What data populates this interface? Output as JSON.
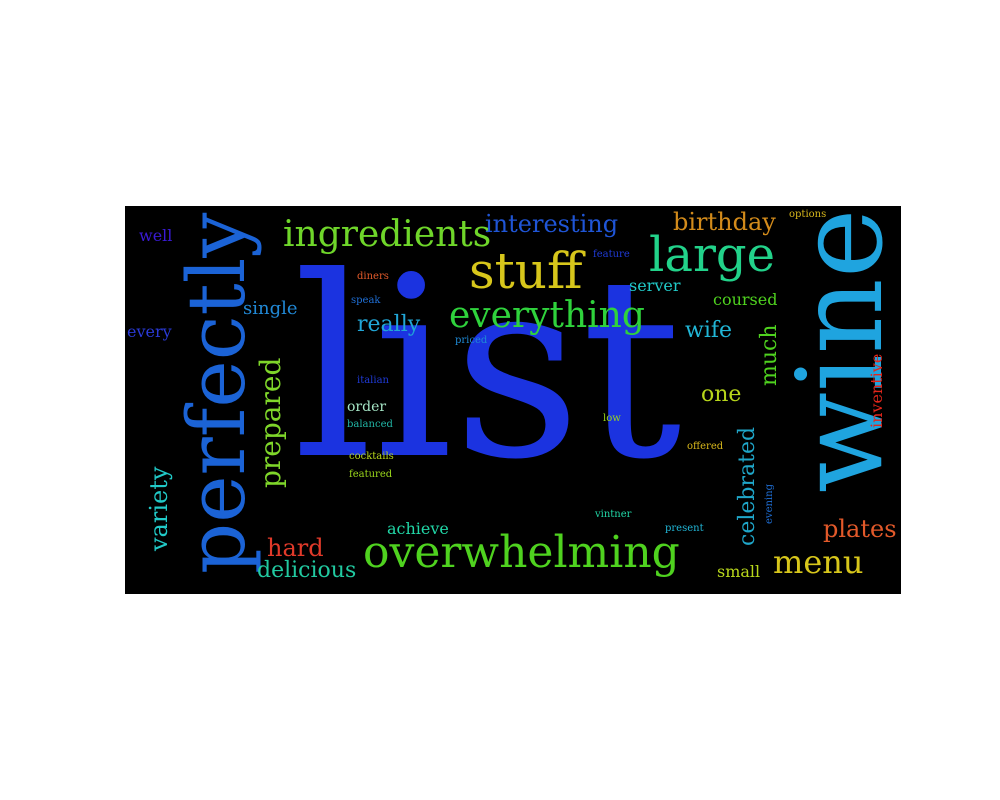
{
  "background_color": "#000000",
  "words": [
    {
      "text": "list",
      "color": "#1b33e0"
    },
    {
      "text": "wine",
      "color": "#1fa4df"
    },
    {
      "text": "perfectly",
      "color": "#1b63d6"
    },
    {
      "text": "overwhelming",
      "color": "#4fd21f"
    },
    {
      "text": "stuff",
      "color": "#d7c61b"
    },
    {
      "text": "large",
      "color": "#22d28a"
    },
    {
      "text": "ingredients",
      "color": "#6fd62a"
    },
    {
      "text": "everything",
      "color": "#2fd23c"
    },
    {
      "text": "interesting",
      "color": "#1f55d6"
    },
    {
      "text": "birthday",
      "color": "#d38b1b"
    },
    {
      "text": "prepared",
      "color": "#7fd62a"
    },
    {
      "text": "variety",
      "color": "#21c9c7"
    },
    {
      "text": "menu",
      "color": "#d7c61b"
    },
    {
      "text": "celebrated",
      "color": "#1fa6c9"
    },
    {
      "text": "plates",
      "color": "#e2592a"
    },
    {
      "text": "hard",
      "color": "#e23a2a"
    },
    {
      "text": "delicious",
      "color": "#21c9a0"
    },
    {
      "text": "really",
      "color": "#21a6d6"
    },
    {
      "text": "single",
      "color": "#2189d6"
    },
    {
      "text": "wife",
      "color": "#21b6d6"
    },
    {
      "text": "one",
      "color": "#b7d61b"
    },
    {
      "text": "much",
      "color": "#4fd21f"
    },
    {
      "text": "inventive",
      "color": "#e2261b"
    },
    {
      "text": "every",
      "color": "#2a3ad6"
    },
    {
      "text": "well",
      "color": "#3a1bd6"
    },
    {
      "text": "server",
      "color": "#21c9c7"
    },
    {
      "text": "coursed",
      "color": "#4fd21f"
    },
    {
      "text": "achieve",
      "color": "#21d6a6"
    },
    {
      "text": "small",
      "color": "#b7d61b"
    },
    {
      "text": "order",
      "color": "#a6e6c6"
    },
    {
      "text": "options",
      "color": "#d6b61b"
    },
    {
      "text": "feature",
      "color": "#1f3ad6"
    },
    {
      "text": "diners",
      "color": "#e25a2a"
    },
    {
      "text": "speak",
      "color": "#1f6fd6"
    },
    {
      "text": "priced",
      "color": "#1f8ad6"
    },
    {
      "text": "italian",
      "color": "#1f3ad6"
    },
    {
      "text": "balanced",
      "color": "#21b6a6"
    },
    {
      "text": "cocktails",
      "color": "#b7d61b"
    },
    {
      "text": "featured",
      "color": "#9ad61b"
    },
    {
      "text": "low",
      "color": "#9ad61b"
    },
    {
      "text": "offered",
      "color": "#d6b61b"
    },
    {
      "text": "vintner",
      "color": "#21d6a6"
    },
    {
      "text": "present",
      "color": "#21b6d6"
    },
    {
      "text": "evening",
      "color": "#1f6fd6"
    }
  ]
}
